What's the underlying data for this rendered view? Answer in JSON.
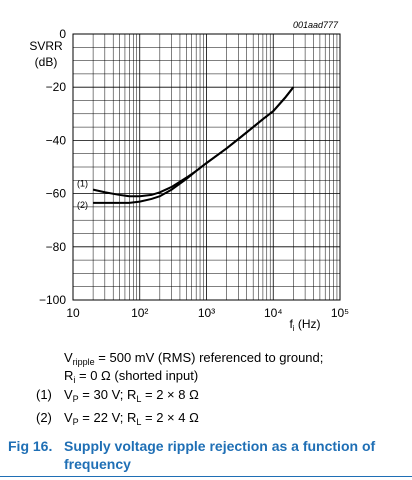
{
  "chart_data": {
    "type": "line",
    "figure_id": "001aad777",
    "y_label": [
      "SVRR",
      "(dB)"
    ],
    "x_label": [
      "f",
      "i",
      " (Hz)"
    ],
    "log_x": true,
    "grid": true,
    "xlim": [
      10,
      100000
    ],
    "xticks": [
      10,
      {
        "value": 100,
        "label": "10²"
      },
      {
        "value": 1000,
        "label": "10³"
      },
      {
        "value": 10000,
        "label": "10⁴"
      },
      {
        "value": 100000,
        "label": "10⁵"
      }
    ],
    "ylim": [
      -100,
      0
    ],
    "yticks": [
      {
        "value": -100,
        "label": "−100"
      },
      {
        "value": -80,
        "label": "−80"
      },
      {
        "value": -60,
        "label": "−60"
      },
      {
        "value": -40,
        "label": "−40"
      },
      {
        "value": -20,
        "label": "−20"
      },
      0
    ],
    "x": [
      20,
      30,
      50,
      70,
      100,
      150,
      200,
      300,
      500,
      700,
      1000,
      2000,
      3000,
      5000,
      7000,
      10000,
      15000,
      20000
    ],
    "series": [
      {
        "name": "(1)",
        "color": "#000000",
        "values": [
          -58.5,
          -59.5,
          -60.5,
          -61,
          -61,
          -60.5,
          -59.5,
          -57.5,
          -54,
          -51.5,
          -48.5,
          -43,
          -39.5,
          -35,
          -32,
          -29,
          -24,
          -20
        ]
      },
      {
        "name": "(2)",
        "color": "#000000",
        "values": [
          -63.5,
          -63.5,
          -63.5,
          -63.5,
          -63,
          -62,
          -61,
          -58.5,
          -54.5,
          -51.5,
          -48.5,
          -43,
          -39.5,
          -35,
          -32,
          -29,
          -24,
          -20
        ]
      }
    ],
    "notes": [
      {
        "segments": [
          "V",
          "ripple",
          " = 500 mV (RMS) referenced to ground;"
        ]
      },
      {
        "segments": [
          "R",
          "i",
          " = 0 Ω (shorted input)"
        ]
      },
      {
        "label": "(1)",
        "segments": [
          "V",
          "P",
          " = 30 V; R",
          "L",
          " = 2 × 8 Ω"
        ]
      },
      {
        "label": "(2)",
        "segments": [
          "V",
          "P",
          " = 22 V; R",
          "L",
          " = 2 × 4 Ω"
        ]
      }
    ],
    "caption": {
      "label": "Fig 16.",
      "title": "Supply voltage ripple rejection as a function of frequency"
    }
  }
}
